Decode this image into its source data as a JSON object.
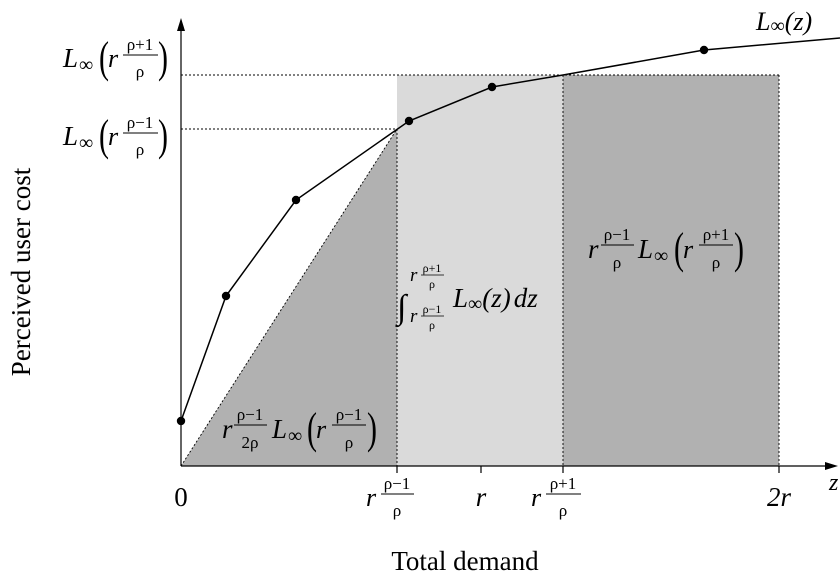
{
  "axes": {
    "y_title": "Perceived user cost",
    "x_title": "Total demand",
    "x_axis_var": "z"
  },
  "curve": {
    "label_fn": "L",
    "label_sub": "∞",
    "label_arg": "(z)"
  },
  "x_ticks": {
    "zero": "0",
    "r_base": "r",
    "rho_minus_1": "ρ−1",
    "rho_plus_1": "ρ+1",
    "rho": "ρ",
    "r": "r",
    "two_r": "2r"
  },
  "y_ticks": {
    "fn": "L",
    "sub": "∞",
    "r": "r",
    "rho_plus_1": "ρ+1",
    "rho_minus_1": "ρ−1",
    "rho": "ρ"
  },
  "region_labels": {
    "triangle": {
      "r": "r",
      "num": "ρ−1",
      "den": "2ρ",
      "fn": "L",
      "sub": "∞",
      "inner_r": "r",
      "inner_num": "ρ−1",
      "inner_den": "ρ"
    },
    "integral": {
      "sign": "∫",
      "upper_r": "r",
      "upper_num": "ρ+1",
      "upper_den": "ρ",
      "lower_r": "r",
      "lower_num": "ρ−1",
      "lower_den": "ρ",
      "fn": "L",
      "sub": "∞",
      "arg": "(z)",
      "dz": "dz"
    },
    "rectangle": {
      "r": "r",
      "num": "ρ−1",
      "den": "ρ",
      "fn": "L",
      "sub": "∞",
      "inner_r": "r",
      "inner_num": "ρ+1",
      "inner_den": "ρ"
    }
  },
  "colors": {
    "dark_region": "#b1b1b1",
    "light_region": "#dadada",
    "line": "#000000"
  }
}
